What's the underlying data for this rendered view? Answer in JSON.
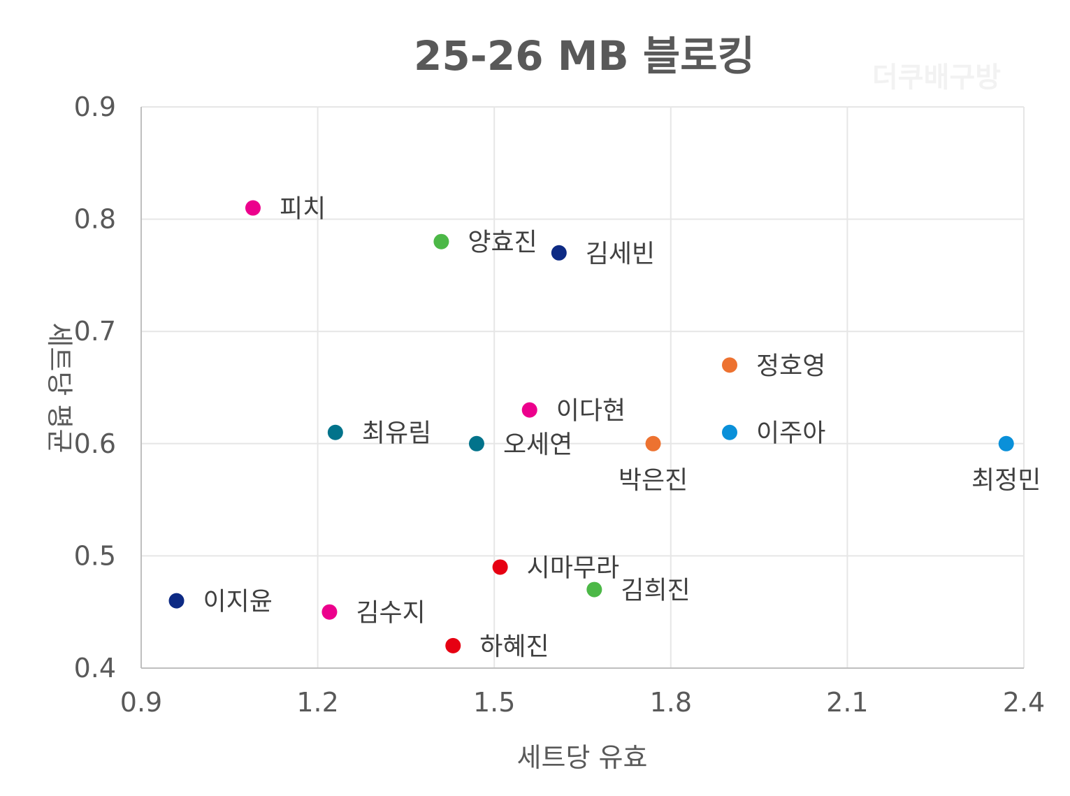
{
  "chart_data": {
    "type": "scatter",
    "title": "25-26 MB 블로킹",
    "watermark": "더쿠배구방",
    "xlabel": "세트당 유효",
    "ylabel": "세트당 평균",
    "xlim": [
      0.9,
      2.4
    ],
    "ylim": [
      0.4,
      0.9
    ],
    "xticks": [
      "0.9",
      "1.2",
      "1.5",
      "1.8",
      "2.1",
      "2.4"
    ],
    "yticks": [
      "0.9",
      "0.8",
      "0.7",
      "0.6",
      "0.5",
      "0.4"
    ],
    "grid": true,
    "legend": "none",
    "points": [
      {
        "label": "피치",
        "x": 1.09,
        "y": 0.81,
        "color": "#ec008c",
        "label_pos": "right"
      },
      {
        "label": "양효진",
        "x": 1.41,
        "y": 0.78,
        "color": "#4cb847",
        "label_pos": "right"
      },
      {
        "label": "김세빈",
        "x": 1.61,
        "y": 0.77,
        "color": "#0d2a84",
        "label_pos": "right"
      },
      {
        "label": "정호영",
        "x": 1.9,
        "y": 0.67,
        "color": "#ed7230",
        "label_pos": "right"
      },
      {
        "label": "이다현",
        "x": 1.56,
        "y": 0.63,
        "color": "#ec008c",
        "label_pos": "right"
      },
      {
        "label": "최유림",
        "x": 1.23,
        "y": 0.61,
        "color": "#02738b",
        "label_pos": "right"
      },
      {
        "label": "오세연",
        "x": 1.47,
        "y": 0.6,
        "color": "#02738b",
        "label_pos": "right"
      },
      {
        "label": "박은진",
        "x": 1.77,
        "y": 0.6,
        "color": "#ed7230",
        "label_pos": "below"
      },
      {
        "label": "이주아",
        "x": 1.9,
        "y": 0.61,
        "color": "#0a90d9",
        "label_pos": "right"
      },
      {
        "label": "최정민",
        "x": 2.37,
        "y": 0.6,
        "color": "#0a90d9",
        "label_pos": "below"
      },
      {
        "label": "시마무라",
        "x": 1.51,
        "y": 0.49,
        "color": "#e60012",
        "label_pos": "right"
      },
      {
        "label": "김희진",
        "x": 1.67,
        "y": 0.47,
        "color": "#4cb847",
        "label_pos": "right"
      },
      {
        "label": "이지윤",
        "x": 0.96,
        "y": 0.46,
        "color": "#0d2a84",
        "label_pos": "right"
      },
      {
        "label": "김수지",
        "x": 1.22,
        "y": 0.45,
        "color": "#ec008c",
        "label_pos": "right"
      },
      {
        "label": "하혜진",
        "x": 1.43,
        "y": 0.42,
        "color": "#e60012",
        "label_pos": "right"
      }
    ]
  }
}
